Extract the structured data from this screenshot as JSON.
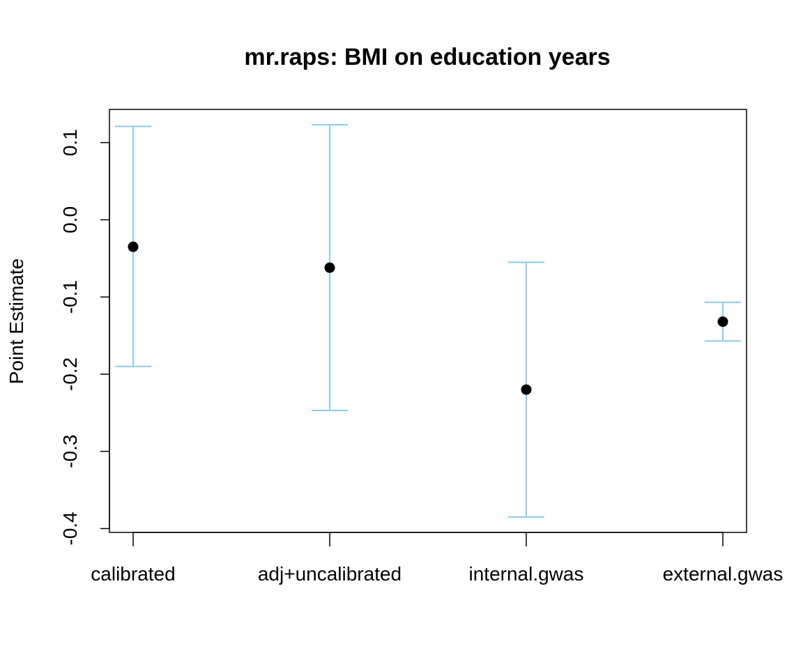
{
  "chart_data": {
    "type": "scatter",
    "title": "mr.raps: BMI on education years",
    "xlabel": "",
    "ylabel": "Point Estimate",
    "categories": [
      "calibrated",
      "adj+uncalibrated",
      "internal.gwas",
      "external.gwas"
    ],
    "points": [
      {
        "estimate": -0.035,
        "lower": -0.19,
        "upper": 0.121
      },
      {
        "estimate": -0.062,
        "lower": -0.247,
        "upper": 0.123
      },
      {
        "estimate": -0.22,
        "lower": -0.385,
        "upper": -0.055
      },
      {
        "estimate": -0.132,
        "lower": -0.157,
        "upper": -0.107
      }
    ],
    "ylim": [
      -0.405,
      0.143
    ],
    "yticks": [
      -0.4,
      -0.3,
      -0.2,
      -0.1,
      0.0,
      0.1
    ],
    "ytick_labels": [
      "-0.4",
      "-0.3",
      "-0.2",
      "-0.1",
      "0.0",
      "0.1"
    ],
    "grid": false,
    "colors": {
      "errorbar": "#87CEEB",
      "point": "#000000"
    }
  }
}
